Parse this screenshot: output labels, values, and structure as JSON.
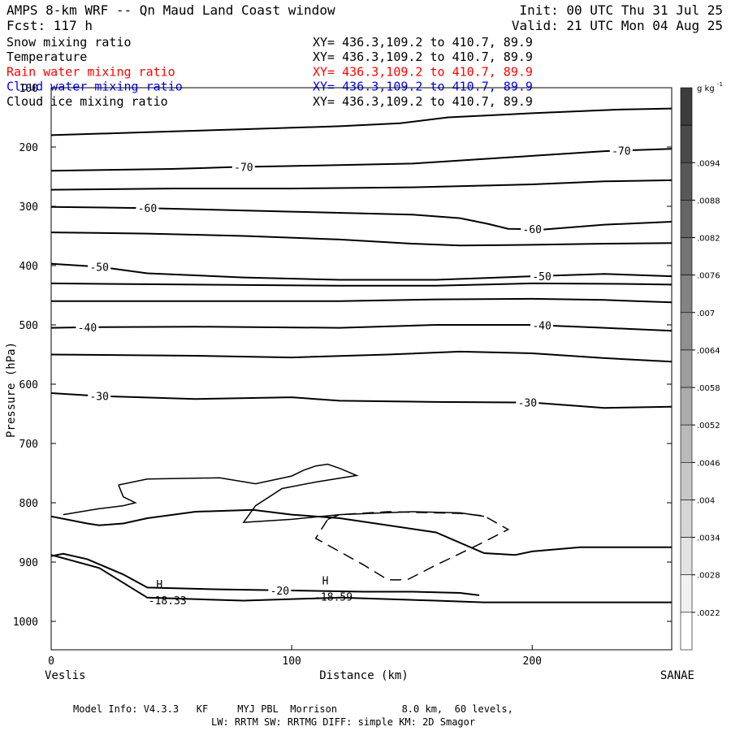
{
  "header": {
    "title": "AMPS 8-km WRF -- Qn Maud Land Coast window",
    "forecast": "Fcst:  117 h",
    "init": "Init: 00 UTC Thu 31 Jul 25",
    "valid": "Valid: 21 UTC Mon 04 Aug 25"
  },
  "fields": [
    {
      "name": "Snow mixing ratio",
      "coords": "XY= 436.3,109.2 to 410.7, 89.9",
      "color": "#000000"
    },
    {
      "name": "Temperature",
      "coords": "XY= 436.3,109.2 to 410.7, 89.9",
      "color": "#000000"
    },
    {
      "name": "Rain water mixing ratio",
      "coords": "XY= 436.3,109.2 to 410.7, 89.9",
      "color": "#ff0000"
    },
    {
      "name": "Cloud water mixing ratio",
      "coords": "XY= 436.3,109.2 to 410.7, 89.9",
      "color": "#0000ff"
    },
    {
      "name": "Cloud ice mixing ratio",
      "coords": "XY= 436.3,109.2 to 410.7, 89.9",
      "color": "#000000"
    }
  ],
  "footer": {
    "model_info": "Model Info: V4.3.3   KF     MYJ PBL  Morrison           8.0 km,  60 levels,",
    "physics": "LW: RRTM SW: RRTMG   DIFF: simple KM: 2D Smagor"
  },
  "chart_data": {
    "type": "contour",
    "xlabel": "Distance (km)",
    "ylabel": "Pressure (hPa)",
    "xlim": [
      0,
      258
    ],
    "ylim": [
      1050,
      100
    ],
    "x_ticks": [
      0,
      100,
      200
    ],
    "y_ticks": [
      100,
      200,
      300,
      400,
      500,
      600,
      700,
      800,
      900,
      1000
    ],
    "left_endpoint": "Veslis",
    "right_endpoint": "SANAE",
    "colorbar": {
      "unit": "g kg",
      "unit_exponent": "-1",
      "levels": [
        ".0094",
        ".0088",
        ".0082",
        ".0076",
        ".007",
        ".0064",
        ".0058",
        ".0052",
        ".0046",
        ".004",
        ".0034",
        ".0028",
        ".0022"
      ]
    },
    "isotherms": [
      {
        "points": [
          [
            0,
            180
          ],
          [
            40,
            175
          ],
          [
            80,
            170
          ],
          [
            120,
            165
          ],
          [
            145,
            160
          ],
          [
            165,
            150
          ],
          [
            200,
            143
          ],
          [
            235,
            137
          ],
          [
            258,
            135
          ]
        ]
      },
      {
        "points": [
          [
            0,
            240
          ],
          [
            50,
            237
          ],
          [
            75,
            234
          ],
          [
            100,
            232
          ],
          [
            150,
            228
          ],
          [
            200,
            215
          ],
          [
            230,
            207
          ],
          [
            258,
            203
          ]
        ],
        "labels": [
          {
            "text": "-70",
            "x": 80
          },
          {
            "text": "-70",
            "x": 237
          }
        ]
      },
      {
        "points": [
          [
            0,
            272
          ],
          [
            50,
            270
          ],
          [
            100,
            270
          ],
          [
            150,
            268
          ],
          [
            200,
            263
          ],
          [
            230,
            258
          ],
          [
            258,
            256
          ]
        ]
      },
      {
        "points": [
          [
            0,
            301
          ],
          [
            40,
            303
          ],
          [
            100,
            309
          ],
          [
            150,
            314
          ],
          [
            170,
            320
          ],
          [
            182,
            330
          ],
          [
            190,
            338
          ],
          [
            205,
            339
          ],
          [
            230,
            331
          ],
          [
            258,
            326
          ]
        ],
        "labels": [
          {
            "text": "-60",
            "x": 40
          },
          {
            "text": "-60",
            "x": 200
          }
        ]
      },
      {
        "points": [
          [
            0,
            344
          ],
          [
            40,
            346
          ],
          [
            80,
            350
          ],
          [
            120,
            356
          ],
          [
            150,
            363
          ],
          [
            170,
            366
          ],
          [
            200,
            365
          ],
          [
            230,
            363
          ],
          [
            258,
            362
          ]
        ]
      },
      {
        "points": [
          [
            0,
            397
          ],
          [
            20,
            402
          ],
          [
            40,
            413
          ],
          [
            80,
            420
          ],
          [
            120,
            424
          ],
          [
            160,
            424
          ],
          [
            200,
            418
          ],
          [
            230,
            414
          ],
          [
            258,
            418
          ]
        ],
        "labels": [
          {
            "text": "-50",
            "x": 20
          },
          {
            "text": "-50",
            "x": 204
          }
        ]
      },
      {
        "points": [
          [
            0,
            430
          ],
          [
            60,
            432
          ],
          [
            120,
            434
          ],
          [
            160,
            434
          ],
          [
            200,
            430
          ],
          [
            240,
            431
          ],
          [
            258,
            432
          ]
        ]
      },
      {
        "points": [
          [
            0,
            460
          ],
          [
            60,
            460
          ],
          [
            120,
            460
          ],
          [
            160,
            457
          ],
          [
            200,
            456
          ],
          [
            230,
            458
          ],
          [
            258,
            462
          ]
        ]
      },
      {
        "points": [
          [
            0,
            505
          ],
          [
            15,
            504
          ],
          [
            60,
            503
          ],
          [
            120,
            505
          ],
          [
            160,
            500
          ],
          [
            200,
            500
          ],
          [
            230,
            505
          ],
          [
            258,
            510
          ]
        ],
        "labels": [
          {
            "text": "-40",
            "x": 15
          },
          {
            "text": "-40",
            "x": 204
          }
        ]
      },
      {
        "points": [
          [
            0,
            550
          ],
          [
            60,
            552
          ],
          [
            100,
            555
          ],
          [
            140,
            550
          ],
          [
            170,
            545
          ],
          [
            200,
            548
          ],
          [
            230,
            556
          ],
          [
            258,
            562
          ]
        ]
      },
      {
        "points": [
          [
            0,
            615
          ],
          [
            20,
            620
          ],
          [
            60,
            625
          ],
          [
            100,
            622
          ],
          [
            120,
            628
          ],
          [
            160,
            630
          ],
          [
            200,
            631
          ],
          [
            230,
            640
          ],
          [
            258,
            638
          ]
        ],
        "labels": [
          {
            "text": "-30",
            "x": 20
          },
          {
            "text": "-30",
            "x": 198
          }
        ]
      },
      {
        "points": [
          [
            0,
            823
          ],
          [
            15,
            835
          ],
          [
            20,
            838
          ],
          [
            30,
            835
          ],
          [
            40,
            826
          ],
          [
            60,
            815
          ],
          [
            84,
            812
          ],
          [
            100,
            820
          ],
          [
            120,
            826
          ],
          [
            160,
            850
          ],
          [
            180,
            885
          ],
          [
            193,
            888
          ],
          [
            200,
            882
          ],
          [
            220,
            875
          ],
          [
            240,
            875
          ],
          [
            258,
            875
          ]
        ]
      },
      {
        "points": [
          [
            0,
            890
          ],
          [
            5,
            886
          ],
          [
            15,
            895
          ],
          [
            30,
            921
          ],
          [
            40,
            943
          ],
          [
            70,
            946
          ],
          [
            100,
            948
          ],
          [
            130,
            950
          ],
          [
            150,
            950
          ],
          [
            170,
            952
          ],
          [
            178,
            956
          ]
        ],
        "labels": [
          {
            "text": "-20",
            "x": 95
          }
        ]
      },
      {
        "points": [
          [
            0,
            888
          ],
          [
            20,
            910
          ],
          [
            40,
            960
          ],
          [
            80,
            965
          ],
          [
            120,
            960
          ],
          [
            160,
            965
          ],
          [
            180,
            968
          ],
          [
            258,
            968
          ]
        ]
      }
    ],
    "snow_contours": [
      {
        "points": [
          [
            28,
            770
          ],
          [
            40,
            760
          ],
          [
            70,
            758
          ],
          [
            85,
            768
          ],
          [
            100,
            755
          ],
          [
            105,
            745
          ],
          [
            110,
            738
          ],
          [
            115,
            735
          ],
          [
            120,
            742
          ],
          [
            127,
            754
          ],
          [
            110,
            765
          ],
          [
            96,
            776
          ],
          [
            85,
            805
          ],
          [
            80,
            833
          ],
          [
            100,
            828
          ],
          [
            120,
            820
          ],
          [
            150,
            815
          ],
          [
            170,
            817
          ],
          [
            180,
            823
          ]
        ],
        "dash": false
      },
      {
        "points": [
          [
            28,
            770
          ],
          [
            30,
            790
          ],
          [
            35,
            800
          ],
          [
            30,
            805
          ],
          [
            20,
            810
          ],
          [
            5,
            820
          ]
        ],
        "dash": false
      },
      {
        "points": [
          [
            115,
            828
          ],
          [
            120,
            820
          ],
          [
            140,
            815
          ],
          [
            170,
            818
          ],
          [
            180,
            822
          ],
          [
            190,
            845
          ],
          [
            178,
            870
          ],
          [
            160,
            905
          ],
          [
            148,
            930
          ],
          [
            140,
            930
          ],
          [
            130,
            905
          ],
          [
            110,
            860
          ],
          [
            115,
            828
          ]
        ],
        "dash": true
      }
    ],
    "highs": [
      {
        "label": "H",
        "x": 45,
        "p": 944,
        "value": "-18.33"
      },
      {
        "label": "H",
        "x": 114,
        "p": 938,
        "value": "-18.59"
      }
    ]
  }
}
